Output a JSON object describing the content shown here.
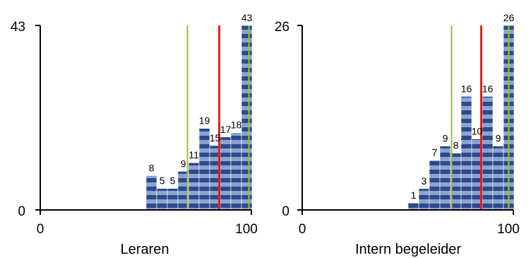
{
  "colors": {
    "bar_dark": "#2a4a8c",
    "bar_light": "#8da2cc",
    "green_line": "#9bc42c",
    "red_line": "#ee1c1c",
    "axis": "#000000"
  },
  "chart_data": [
    {
      "type": "bar",
      "xlabel": "Leraren",
      "xlim": [
        0,
        100
      ],
      "ylim": [
        0,
        43
      ],
      "x_tick_labels": [
        "0",
        "100"
      ],
      "y_tick_labels": [
        "0",
        "43"
      ],
      "bins": [
        {
          "x0": 50,
          "x1": 55,
          "value": 8
        },
        {
          "x0": 55,
          "x1": 60,
          "value": 5
        },
        {
          "x0": 60,
          "x1": 65,
          "value": 5
        },
        {
          "x0": 65,
          "x1": 70,
          "value": 9
        },
        {
          "x0": 70,
          "x1": 75,
          "value": 11
        },
        {
          "x0": 75,
          "x1": 80,
          "value": 19
        },
        {
          "x0": 80,
          "x1": 85,
          "value": 15
        },
        {
          "x0": 85,
          "x1": 90,
          "value": 17
        },
        {
          "x0": 90,
          "x1": 95,
          "value": 18
        },
        {
          "x0": 95,
          "x1": 100,
          "value": 43
        }
      ],
      "reference_lines": [
        {
          "color": "green",
          "x": 69.5
        },
        {
          "color": "red",
          "x": 84.5
        },
        {
          "color": "green",
          "x": 98.5
        }
      ]
    },
    {
      "type": "bar",
      "xlabel": "Intern begeleider",
      "xlim": [
        0,
        100
      ],
      "ylim": [
        0,
        26
      ],
      "x_tick_labels": [
        "0",
        "100"
      ],
      "y_tick_labels": [
        "0",
        "26"
      ],
      "bins": [
        {
          "x0": 50,
          "x1": 55,
          "value": 1
        },
        {
          "x0": 55,
          "x1": 60,
          "value": 3
        },
        {
          "x0": 60,
          "x1": 65,
          "value": 7
        },
        {
          "x0": 65,
          "x1": 70,
          "value": 9
        },
        {
          "x0": 70,
          "x1": 75,
          "value": 8
        },
        {
          "x0": 75,
          "x1": 80,
          "value": 16
        },
        {
          "x0": 80,
          "x1": 85,
          "value": 10
        },
        {
          "x0": 85,
          "x1": 90,
          "value": 16
        },
        {
          "x0": 90,
          "x1": 95,
          "value": 9
        },
        {
          "x0": 95,
          "x1": 100,
          "value": 26
        }
      ],
      "reference_lines": [
        {
          "color": "green",
          "x": 70.5
        },
        {
          "color": "red",
          "x": 84.5
        },
        {
          "color": "green",
          "x": 97.5
        }
      ]
    }
  ]
}
